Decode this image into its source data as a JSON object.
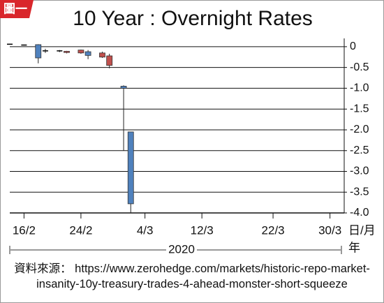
{
  "chart_data": {
    "type": "candlestick",
    "badge": "圖一",
    "title": "10 Year : Overnight Rates",
    "x_unit": "日/月",
    "year_label": "2020",
    "year_unit": "年",
    "source": "資料來源： https://www.zerohedge.com/markets/historic-repo-market-insanity-10y-treasury-trades-4-ahead-monster-short-squeeze",
    "x": [
      "2020-02-14",
      "2020-02-16",
      "2020-02-18",
      "2020-02-19",
      "2020-02-21",
      "2020-02-22",
      "2020-02-24",
      "2020-02-25",
      "2020-02-27",
      "2020-02-28",
      "2020-03-01",
      "2020-03-02"
    ],
    "open": [
      0.06,
      0.04,
      0.05,
      -0.1,
      -0.1,
      -0.14,
      -0.15,
      -0.12,
      -0.25,
      -0.45,
      -0.95,
      -2.05
    ],
    "high": [
      0.07,
      0.05,
      0.06,
      -0.05,
      -0.08,
      -0.1,
      -0.07,
      -0.08,
      -0.12,
      -0.17,
      -0.93,
      -2.05
    ],
    "low": [
      0.05,
      0.03,
      -0.4,
      -0.15,
      -0.13,
      -0.16,
      -0.17,
      -0.3,
      -0.27,
      -0.52,
      -2.5,
      -4.0
    ],
    "close": [
      0.06,
      0.04,
      -0.27,
      -0.1,
      -0.1,
      -0.11,
      -0.08,
      -0.21,
      -0.15,
      -0.22,
      -1.0,
      -3.78
    ],
    "up_color": "#c0504d",
    "down_color": "#4f81bd",
    "flat_color": "#000000",
    "xlim": [
      "2020-02-14",
      "2020-04-01"
    ],
    "xticks": [
      {
        "value": "2020-02-16",
        "label": "16/2"
      },
      {
        "value": "2020-02-24",
        "label": "24/2"
      },
      {
        "value": "2020-03-04",
        "label": "4/3"
      },
      {
        "value": "2020-03-12",
        "label": "12/3"
      },
      {
        "value": "2020-03-22",
        "label": "22/3"
      },
      {
        "value": "2020-03-30",
        "label": "30/3"
      }
    ],
    "ylim": [
      -4.0,
      0.2
    ],
    "yticks": [
      0,
      -0.5,
      {
        "value": -1,
        "label": "-1.0"
      },
      -1.5,
      {
        "value": -2,
        "label": "-2.0"
      },
      -2.5,
      {
        "value": -3,
        "label": "-3.0"
      },
      -3.5,
      {
        "value": -4,
        "label": "-4.0"
      }
    ],
    "grid": true
  }
}
